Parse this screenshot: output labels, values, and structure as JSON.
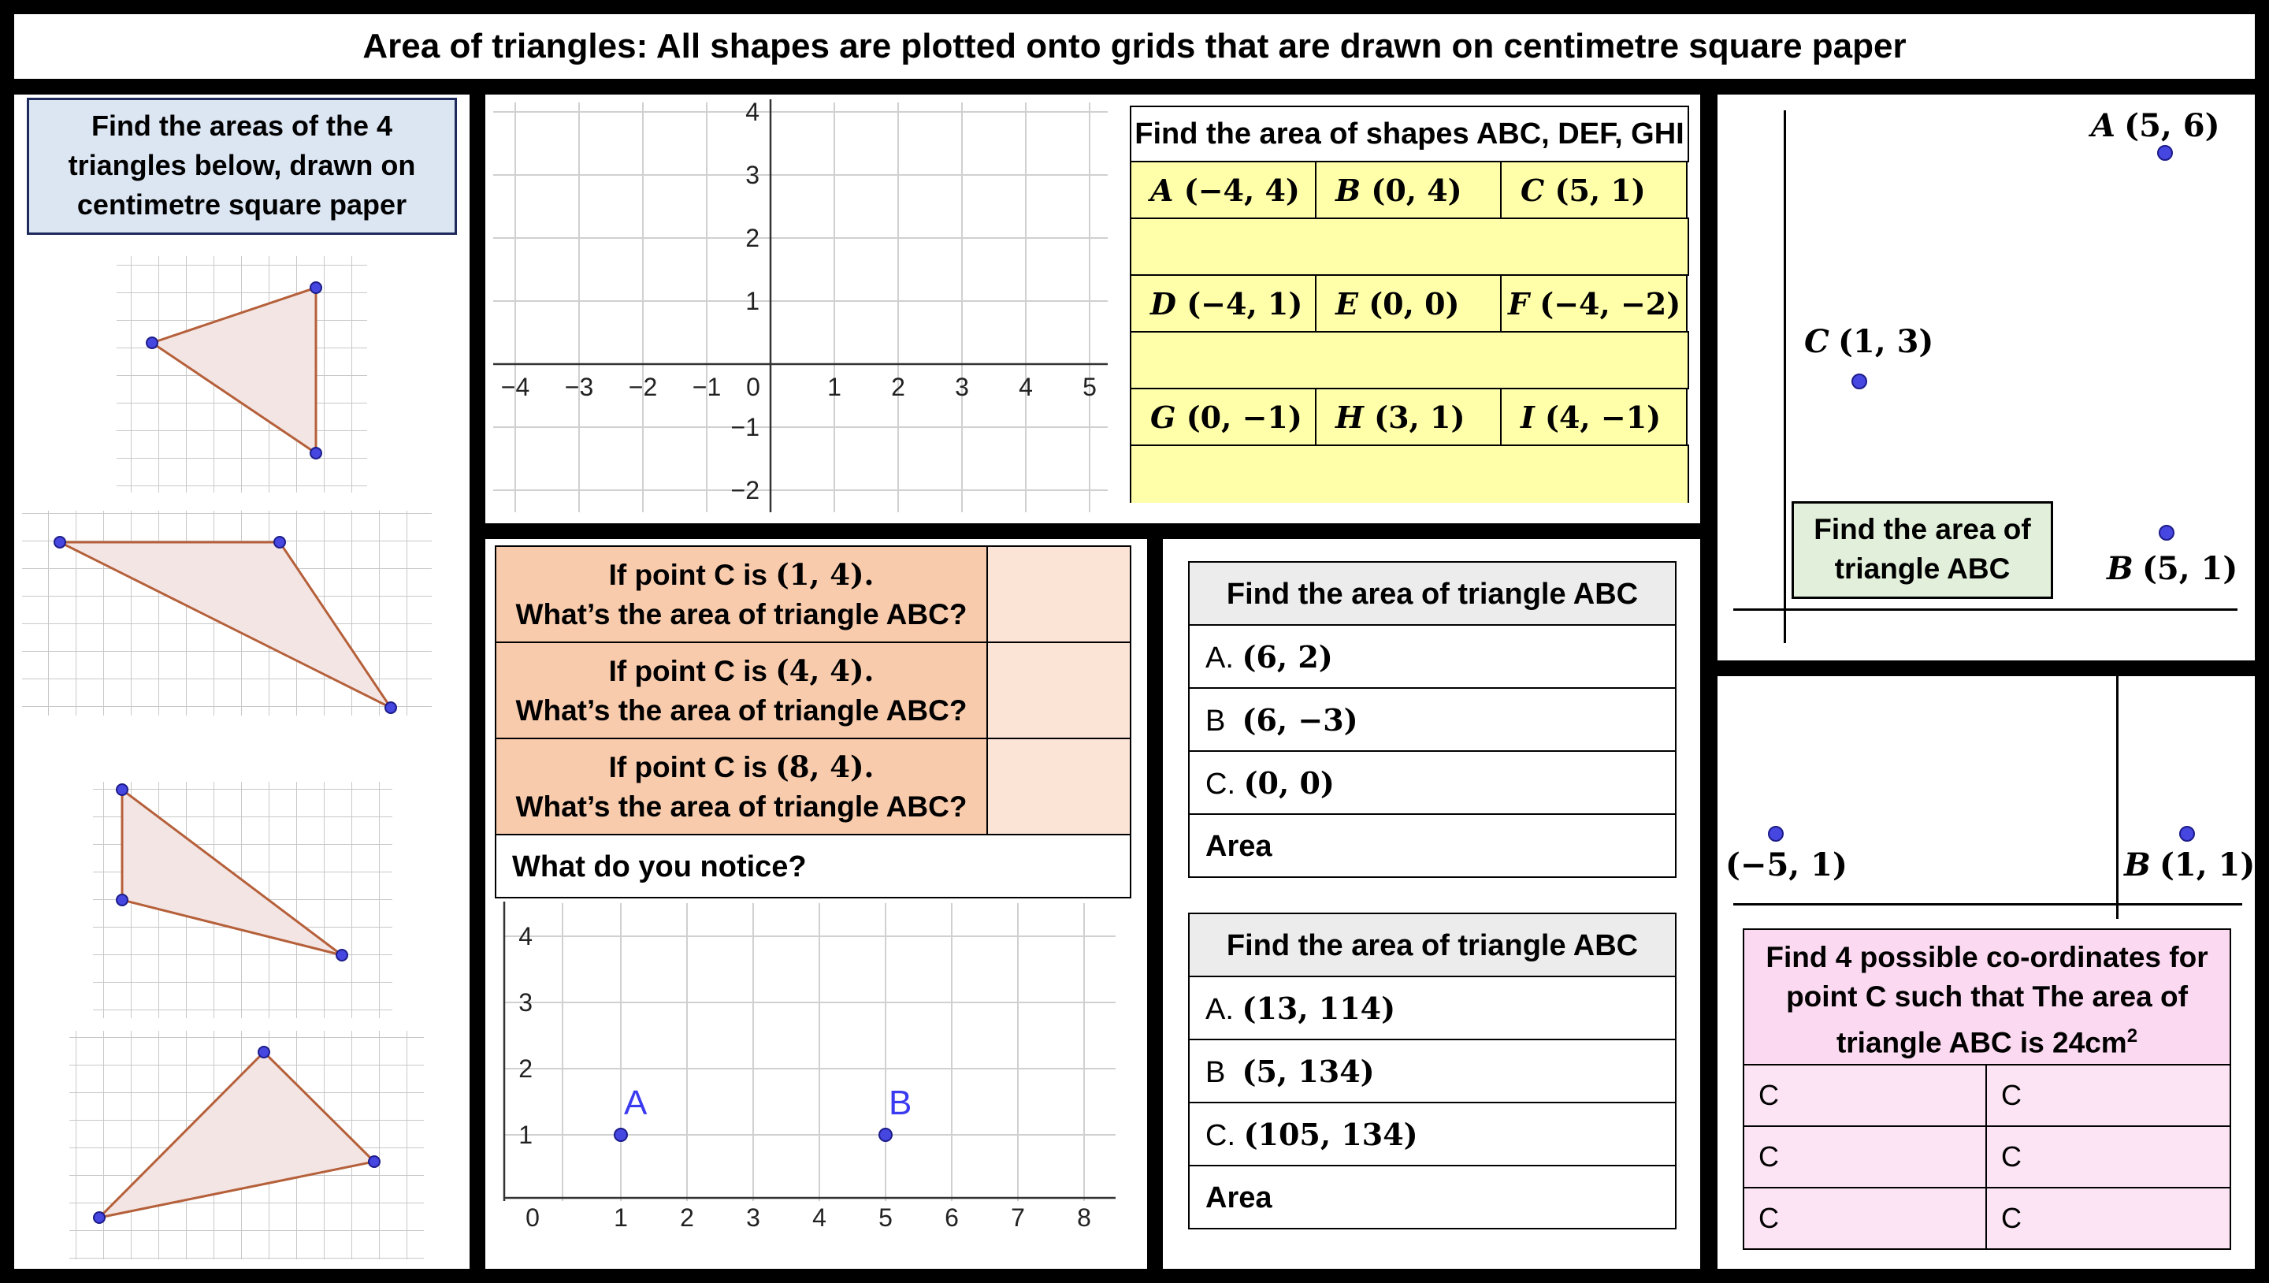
{
  "title": "Area of triangles: All shapes are plotted onto grids that are drawn on centimetre square paper",
  "left_panel": {
    "heading": "Find the areas of the 4 triangles below, drawn on centimetre square paper"
  },
  "coord_panel": {
    "x_ticks": [
      "−4",
      "−3",
      "−2",
      "−1",
      "0",
      "1",
      "2",
      "3",
      "4",
      "5"
    ],
    "y_ticks": [
      "4",
      "3",
      "2",
      "1",
      "−1",
      "−2"
    ],
    "table_heading": "Find the area of shapes ABC, DEF, GHI",
    "rows": [
      [
        {
          "label": "A",
          "coord": "(−4, 4)"
        },
        {
          "label": "B",
          "coord": "(0, 4)"
        },
        {
          "label": "C",
          "coord": "(5, 1)"
        }
      ],
      [
        {
          "label": "D",
          "coord": "(−4, 1)"
        },
        {
          "label": "E",
          "coord": "(0, 0)"
        },
        {
          "label": "F",
          "coord": "(−4, −2)"
        }
      ],
      [
        {
          "label": "G",
          "coord": "(0, −1)"
        },
        {
          "label": "H",
          "coord": "(3, 1)"
        },
        {
          "label": "I",
          "coord": "(4, −1)"
        }
      ]
    ]
  },
  "top_right": {
    "points": [
      {
        "name": "A",
        "coord": "(5, 6)"
      },
      {
        "name": "C",
        "coord": "(1, 3)"
      },
      {
        "name": "B",
        "coord": "(5, 1)"
      }
    ],
    "box_text": "Find the area of triangle ABC"
  },
  "pointc_panel": {
    "questions": [
      {
        "line1_prefix": "If point C is ",
        "coord": "(1, 4).",
        "line2": "What’s the area of triangle ABC?"
      },
      {
        "line1_prefix": "If point C is ",
        "coord": "(4, 4).",
        "line2": "What’s the area of triangle ABC?"
      },
      {
        "line1_prefix": "If point C is ",
        "coord": "(8, 4).",
        "line2": "What’s the area of triangle ABC?"
      }
    ],
    "notice": "What do you notice?",
    "x_ticks": [
      "0",
      "1",
      "2",
      "3",
      "4",
      "5",
      "6",
      "7",
      "8"
    ],
    "y_ticks": [
      "4",
      "3",
      "2",
      "1"
    ],
    "point_a": "A",
    "point_b": "B"
  },
  "mc_panel": {
    "table1": {
      "heading": "Find the area of triangle ABC",
      "rows": [
        {
          "label": "A. ",
          "coord": "(6, 2)"
        },
        {
          "label": "B  ",
          "coord": "(6, −3)"
        },
        {
          "label": "C. ",
          "coord": "(0, 0)"
        }
      ],
      "area": "Area"
    },
    "table2": {
      "heading": "Find the area of triangle ABC",
      "rows": [
        {
          "label": "A. ",
          "coord": "(13, 114)"
        },
        {
          "label": "B  ",
          "coord": "(5, 134)"
        },
        {
          "label": "C. ",
          "coord": "(105, 134)"
        }
      ],
      "area": "Area"
    }
  },
  "bottom_right": {
    "point_left": "(−5, 1)",
    "point_b_name": "B",
    "point_b_coord": "(1, 1)",
    "heading_pre": "Find 4 possible co-ordinates for point C such that The area of triangle ABC is 24cm",
    "heading_sup": "2",
    "cells": [
      "C",
      "C",
      "C",
      "C",
      "C",
      "C"
    ]
  }
}
